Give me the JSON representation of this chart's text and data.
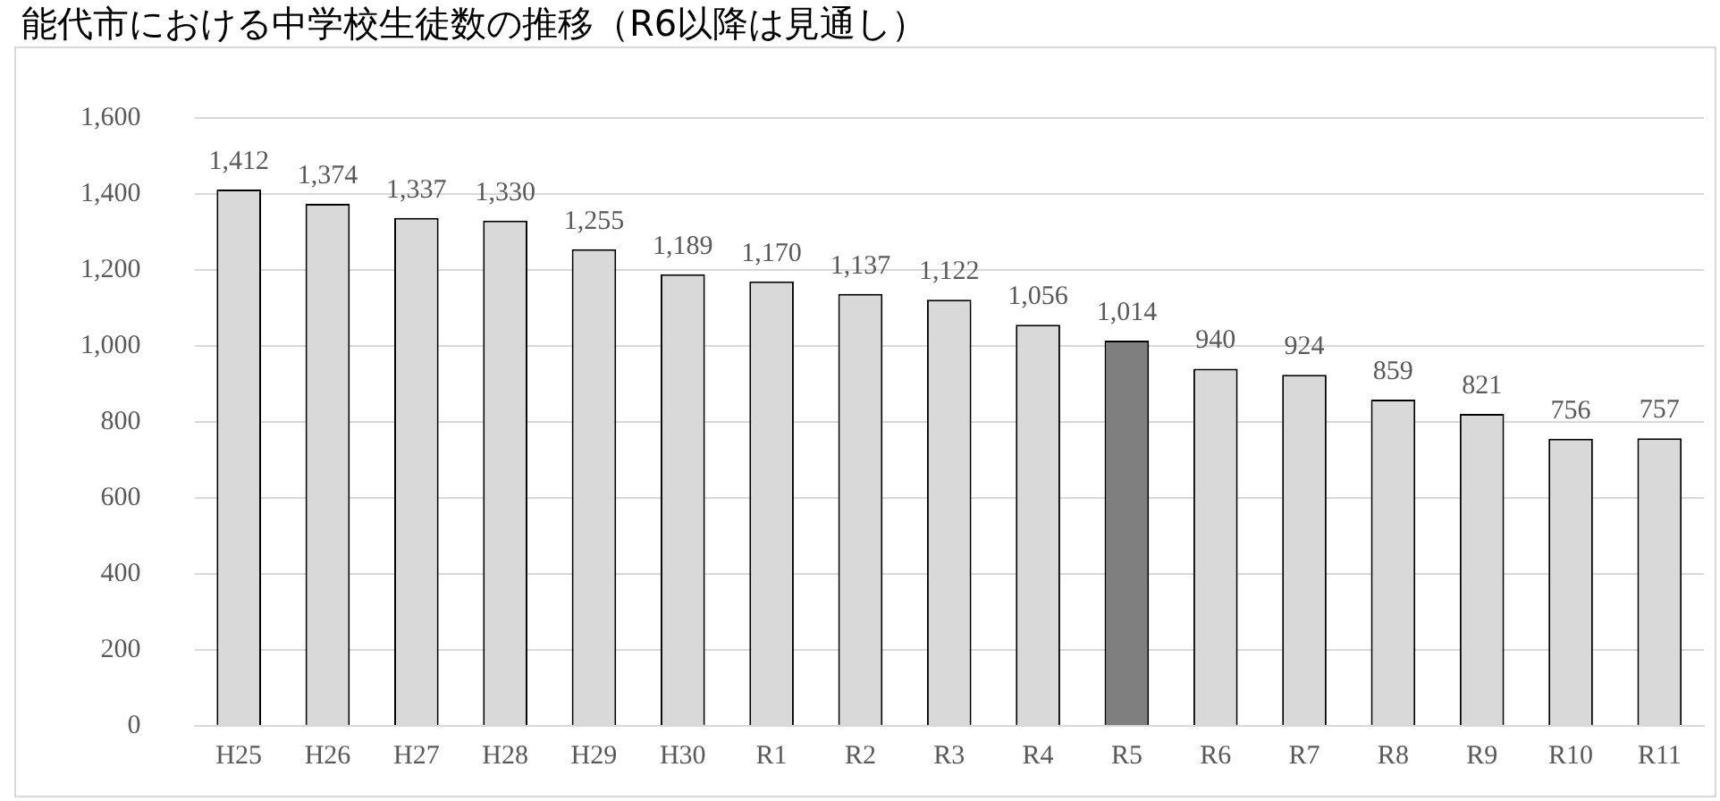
{
  "chart_data": {
    "type": "bar",
    "title": "能代市における中学校生徒数の推移（R6以降は見通し）",
    "categories": [
      "H25",
      "H26",
      "H27",
      "H28",
      "H29",
      "H30",
      "R1",
      "R2",
      "R3",
      "R4",
      "R5",
      "R6",
      "R7",
      "R8",
      "R9",
      "R10",
      "R11"
    ],
    "values": [
      1412,
      1374,
      1337,
      1330,
      1255,
      1189,
      1170,
      1137,
      1122,
      1056,
      1014,
      940,
      924,
      859,
      821,
      756,
      757
    ],
    "colors": [
      "#d9d9d9",
      "#d9d9d9",
      "#d9d9d9",
      "#d9d9d9",
      "#d9d9d9",
      "#d9d9d9",
      "#d9d9d9",
      "#d9d9d9",
      "#d9d9d9",
      "#d9d9d9",
      "#7f7f7f",
      "#d9d9d9",
      "#d9d9d9",
      "#d9d9d9",
      "#d9d9d9",
      "#d9d9d9",
      "#d9d9d9"
    ],
    "value_labels": [
      "1,412",
      "1,374",
      "1,337",
      "1,330",
      "1,255",
      "1,189",
      "1,170",
      "1,137",
      "1,122",
      "1,056",
      "1,014",
      "940",
      "924",
      "859",
      "821",
      "756",
      "757"
    ],
    "ylim": [
      0,
      1600
    ],
    "yticks": [
      0,
      200,
      400,
      600,
      800,
      {
        "value": 1000,
        "label": "1,000"
      },
      {
        "value": 1200,
        "label": "1,200"
      },
      {
        "value": 1400,
        "label": "1,400"
      },
      {
        "value": 1600,
        "label": "1,600"
      }
    ],
    "grid": "y"
  }
}
